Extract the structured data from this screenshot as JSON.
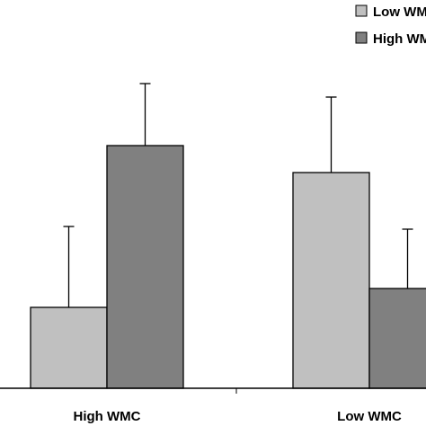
{
  "chart_data": {
    "type": "bar",
    "categories": [
      "High WMC",
      "Low WMC"
    ],
    "series": [
      {
        "name": "Low WM",
        "color": "#c0c0c0",
        "values": [
          0.3,
          0.8
        ],
        "errors": [
          0.3,
          0.28
        ]
      },
      {
        "name": "High WM",
        "color": "#808080",
        "values": [
          0.9,
          0.37
        ],
        "errors": [
          0.23,
          0.22
        ]
      }
    ],
    "ylim": [
      0,
      1.2
    ],
    "grid": false,
    "legend": "top-right",
    "title": "",
    "xlabel": "",
    "ylabel": ""
  }
}
